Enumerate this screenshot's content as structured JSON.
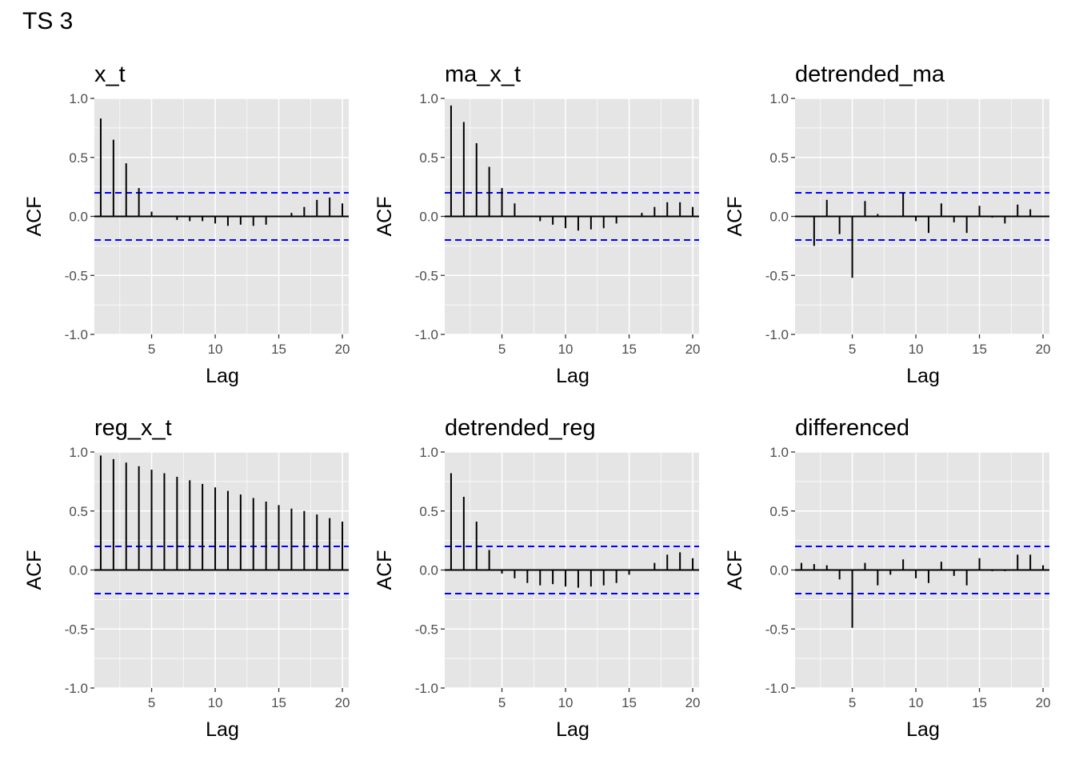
{
  "figure_title": "TS 3",
  "chart_data": [
    {
      "type": "bar",
      "title": "x_t",
      "xlabel": "Lag",
      "ylabel": "ACF",
      "ylim": [
        -1.0,
        1.0
      ],
      "xlim": [
        0.5,
        20.5
      ],
      "x_ticks": [
        5,
        10,
        15,
        20
      ],
      "y_ticks": [
        "1.0",
        "0.5",
        "0.0",
        "-0.5",
        "-1.0"
      ],
      "grid": true,
      "confidence_bounds": [
        0.2,
        -0.2
      ],
      "lags": [
        1,
        2,
        3,
        4,
        5,
        6,
        7,
        8,
        9,
        10,
        11,
        12,
        13,
        14,
        15,
        16,
        17,
        18,
        19,
        20
      ],
      "values": [
        0.83,
        0.65,
        0.45,
        0.24,
        0.04,
        0.0,
        -0.03,
        -0.04,
        -0.04,
        -0.06,
        -0.08,
        -0.07,
        -0.08,
        -0.07,
        0.0,
        0.03,
        0.08,
        0.14,
        0.16,
        0.11
      ]
    },
    {
      "type": "bar",
      "title": "ma_x_t",
      "xlabel": "Lag",
      "ylabel": "ACF",
      "ylim": [
        -1.0,
        1.0
      ],
      "xlim": [
        0.5,
        20.5
      ],
      "x_ticks": [
        5,
        10,
        15,
        20
      ],
      "y_ticks": [
        "1.0",
        "0.5",
        "0.0",
        "-0.5",
        "-1.0"
      ],
      "grid": true,
      "confidence_bounds": [
        0.2,
        -0.2
      ],
      "lags": [
        1,
        2,
        3,
        4,
        5,
        6,
        7,
        8,
        9,
        10,
        11,
        12,
        13,
        14,
        15,
        16,
        17,
        18,
        19,
        20
      ],
      "values": [
        0.94,
        0.8,
        0.62,
        0.42,
        0.24,
        0.11,
        0.0,
        -0.04,
        -0.07,
        -0.1,
        -0.12,
        -0.11,
        -0.1,
        -0.06,
        0.0,
        0.03,
        0.08,
        0.12,
        0.12,
        0.08
      ]
    },
    {
      "type": "bar",
      "title": "detrended_ma",
      "xlabel": "Lag",
      "ylabel": "ACF",
      "ylim": [
        -1.0,
        1.0
      ],
      "xlim": [
        0.5,
        20.5
      ],
      "x_ticks": [
        5,
        10,
        15,
        20
      ],
      "y_ticks": [
        "1.0",
        "0.5",
        "0.0",
        "-0.5",
        "-1.0"
      ],
      "grid": true,
      "confidence_bounds": [
        0.2,
        -0.2
      ],
      "lags": [
        1,
        2,
        3,
        4,
        5,
        6,
        7,
        8,
        9,
        10,
        11,
        12,
        13,
        14,
        15,
        16,
        17,
        18,
        19,
        20
      ],
      "values": [
        0.0,
        -0.25,
        0.14,
        -0.15,
        -0.52,
        0.13,
        0.02,
        0.0,
        0.2,
        -0.04,
        -0.14,
        0.11,
        -0.05,
        -0.14,
        0.09,
        -0.01,
        -0.06,
        0.1,
        0.06,
        0.0
      ]
    },
    {
      "type": "bar",
      "title": "reg_x_t",
      "xlabel": "Lag",
      "ylabel": "ACF",
      "ylim": [
        -1.0,
        1.0
      ],
      "xlim": [
        0.5,
        20.5
      ],
      "x_ticks": [
        5,
        10,
        15,
        20
      ],
      "y_ticks": [
        "1.0",
        "0.5",
        "0.0",
        "-0.5",
        "-1.0"
      ],
      "grid": true,
      "confidence_bounds": [
        0.2,
        -0.2
      ],
      "lags": [
        1,
        2,
        3,
        4,
        5,
        6,
        7,
        8,
        9,
        10,
        11,
        12,
        13,
        14,
        15,
        16,
        17,
        18,
        19,
        20
      ],
      "values": [
        0.97,
        0.94,
        0.91,
        0.88,
        0.85,
        0.82,
        0.79,
        0.76,
        0.73,
        0.7,
        0.67,
        0.64,
        0.61,
        0.58,
        0.55,
        0.52,
        0.5,
        0.47,
        0.44,
        0.41
      ]
    },
    {
      "type": "bar",
      "title": "detrended_reg",
      "xlabel": "Lag",
      "ylabel": "ACF",
      "ylim": [
        -1.0,
        1.0
      ],
      "xlim": [
        0.5,
        20.5
      ],
      "x_ticks": [
        5,
        10,
        15,
        20
      ],
      "y_ticks": [
        "1.0",
        "0.5",
        "0.0",
        "-0.5",
        "-1.0"
      ],
      "grid": true,
      "confidence_bounds": [
        0.2,
        -0.2
      ],
      "lags": [
        1,
        2,
        3,
        4,
        5,
        6,
        7,
        8,
        9,
        10,
        11,
        12,
        13,
        14,
        15,
        16,
        17,
        18,
        19,
        20
      ],
      "values": [
        0.82,
        0.62,
        0.41,
        0.17,
        -0.03,
        -0.07,
        -0.11,
        -0.13,
        -0.12,
        -0.14,
        -0.15,
        -0.14,
        -0.13,
        -0.11,
        -0.04,
        0.0,
        0.06,
        0.13,
        0.15,
        0.1
      ]
    },
    {
      "type": "bar",
      "title": "differenced",
      "xlabel": "Lag",
      "ylabel": "ACF",
      "ylim": [
        -1.0,
        1.0
      ],
      "xlim": [
        0.5,
        20.5
      ],
      "x_ticks": [
        5,
        10,
        15,
        20
      ],
      "y_ticks": [
        "1.0",
        "0.5",
        "0.0",
        "-0.5",
        "-1.0"
      ],
      "grid": true,
      "confidence_bounds": [
        0.2,
        -0.2
      ],
      "lags": [
        1,
        2,
        3,
        4,
        5,
        6,
        7,
        8,
        9,
        10,
        11,
        12,
        13,
        14,
        15,
        16,
        17,
        18,
        19,
        20
      ],
      "values": [
        0.06,
        0.05,
        0.04,
        -0.08,
        -0.49,
        0.06,
        -0.13,
        -0.04,
        0.09,
        -0.07,
        -0.11,
        0.07,
        -0.05,
        -0.13,
        0.1,
        -0.01,
        -0.01,
        0.13,
        0.13,
        0.04
      ]
    }
  ],
  "colors": {
    "panel_background": "#e5e5e5",
    "grid": "#ffffff",
    "bars": "#000000",
    "confidence_line": "#0000ff",
    "tick_label": "#4d4d4d",
    "text": "#000000"
  }
}
